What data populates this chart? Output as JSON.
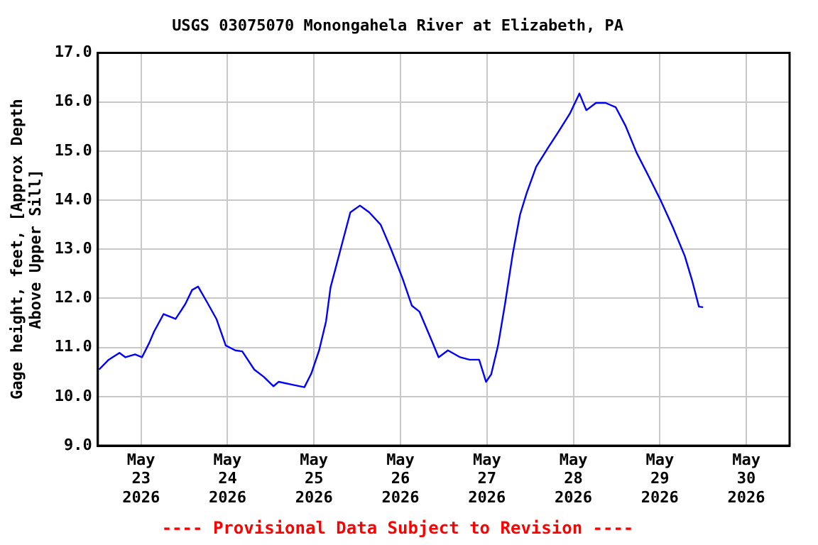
{
  "chart_data": {
    "type": "line",
    "title": "USGS 03075070 Monongahela River at Elizabeth, PA",
    "ylabel": "Gage height, feet, [Approx Depth Above Upper Sill]",
    "annotations": [
      "---- Provisional Data Subject to Revision ----"
    ],
    "x": [
      "2026-05-22T12:20",
      "2026-05-22T15:00",
      "2026-05-22T18:00",
      "2026-05-22T19:40",
      "2026-05-22T22:20",
      "2026-05-23T00:15",
      "2026-05-23T02:15",
      "2026-05-23T03:35",
      "2026-05-23T06:15",
      "2026-05-23T09:35",
      "2026-05-23T12:15",
      "2026-05-23T14:10",
      "2026-05-23T15:50",
      "2026-05-23T18:15",
      "2026-05-23T20:55",
      "2026-05-23T23:30",
      "2026-05-24T02:10",
      "2026-05-24T04:05",
      "2026-05-24T07:25",
      "2026-05-24T10:05",
      "2026-05-24T12:45",
      "2026-05-24T14:10",
      "2026-05-24T18:00",
      "2026-05-24T21:20",
      "2026-05-24T23:15",
      "2026-05-25T01:25",
      "2026-05-25T03:20",
      "2026-05-25T04:35",
      "2026-05-25T07:25",
      "2026-05-25T10:05",
      "2026-05-25T12:45",
      "2026-05-25T15:20",
      "2026-05-25T18:30",
      "2026-05-25T21:20",
      "2026-05-26T00:30",
      "2026-05-26T03:10",
      "2026-05-26T05:15",
      "2026-05-26T08:40",
      "2026-05-26T10:35",
      "2026-05-26T13:10",
      "2026-05-26T16:35",
      "2026-05-26T19:10",
      "2026-05-26T21:50",
      "2026-05-26T23:45",
      "2026-05-27T01:10",
      "2026-05-27T03:05",
      "2026-05-27T05:00",
      "2026-05-27T07:10",
      "2026-05-27T09:10",
      "2026-05-27T11:00",
      "2026-05-27T13:40",
      "2026-05-27T17:00",
      "2026-05-27T19:40",
      "2026-05-27T23:00",
      "2026-05-28T01:40",
      "2026-05-28T03:35",
      "2026-05-28T06:15",
      "2026-05-28T08:55",
      "2026-05-28T11:45",
      "2026-05-28T14:25",
      "2026-05-28T17:30",
      "2026-05-28T20:55",
      "2026-05-29T00:15",
      "2026-05-29T03:35",
      "2026-05-29T06:55",
      "2026-05-29T08:55",
      "2026-05-29T10:50",
      "2026-05-29T12:00"
    ],
    "series": [
      {
        "color": "#0000ff",
        "values": [
          10.55,
          10.75,
          10.89,
          10.8,
          10.86,
          10.8,
          11.09,
          11.32,
          11.68,
          11.58,
          11.88,
          12.17,
          12.24,
          11.93,
          11.58,
          11.04,
          10.94,
          10.92,
          10.55,
          10.4,
          10.21,
          10.3,
          10.24,
          10.19,
          10.47,
          10.94,
          11.53,
          12.22,
          13.01,
          13.75,
          13.89,
          13.75,
          13.5,
          13.01,
          12.42,
          11.85,
          11.73,
          11.14,
          10.8,
          10.94,
          10.8,
          10.75,
          10.75,
          10.3,
          10.45,
          11.04,
          11.88,
          12.91,
          13.7,
          14.14,
          14.68,
          15.07,
          15.37,
          15.76,
          16.17,
          15.83,
          15.98,
          15.98,
          15.89,
          15.52,
          14.97,
          14.48,
          13.99,
          13.45,
          12.86,
          12.37,
          11.83,
          11.82
        ]
      }
    ],
    "xlim": [
      "2026-05-22T12:00",
      "2026-05-30T12:00"
    ],
    "xticks": [
      {
        "value": "2026-05-23",
        "label": "May 23 2026"
      },
      {
        "value": "2026-05-24",
        "label": "May 24 2026"
      },
      {
        "value": "2026-05-25",
        "label": "May 25 2026"
      },
      {
        "value": "2026-05-26",
        "label": "May 26 2026"
      },
      {
        "value": "2026-05-27",
        "label": "May 27 2026"
      },
      {
        "value": "2026-05-28",
        "label": "May 28 2026"
      },
      {
        "value": "2026-05-29",
        "label": "May 29 2026"
      },
      {
        "value": "2026-05-30",
        "label": "May 30 2026"
      }
    ],
    "ylim": [
      9,
      17
    ],
    "yticks": [
      {
        "value": 9,
        "label": "9.0"
      },
      {
        "value": 10,
        "label": "10.0"
      },
      {
        "value": 11,
        "label": "11.0"
      },
      {
        "value": 12,
        "label": "12.0"
      },
      {
        "value": 13,
        "label": "13.0"
      },
      {
        "value": 14,
        "label": "14.0"
      },
      {
        "value": 15,
        "label": "15.0"
      },
      {
        "value": 16,
        "label": "16.0"
      },
      {
        "value": 17,
        "label": "17.0"
      }
    ],
    "grid": true,
    "legend": false,
    "marker": "none",
    "line_style": "solid"
  }
}
